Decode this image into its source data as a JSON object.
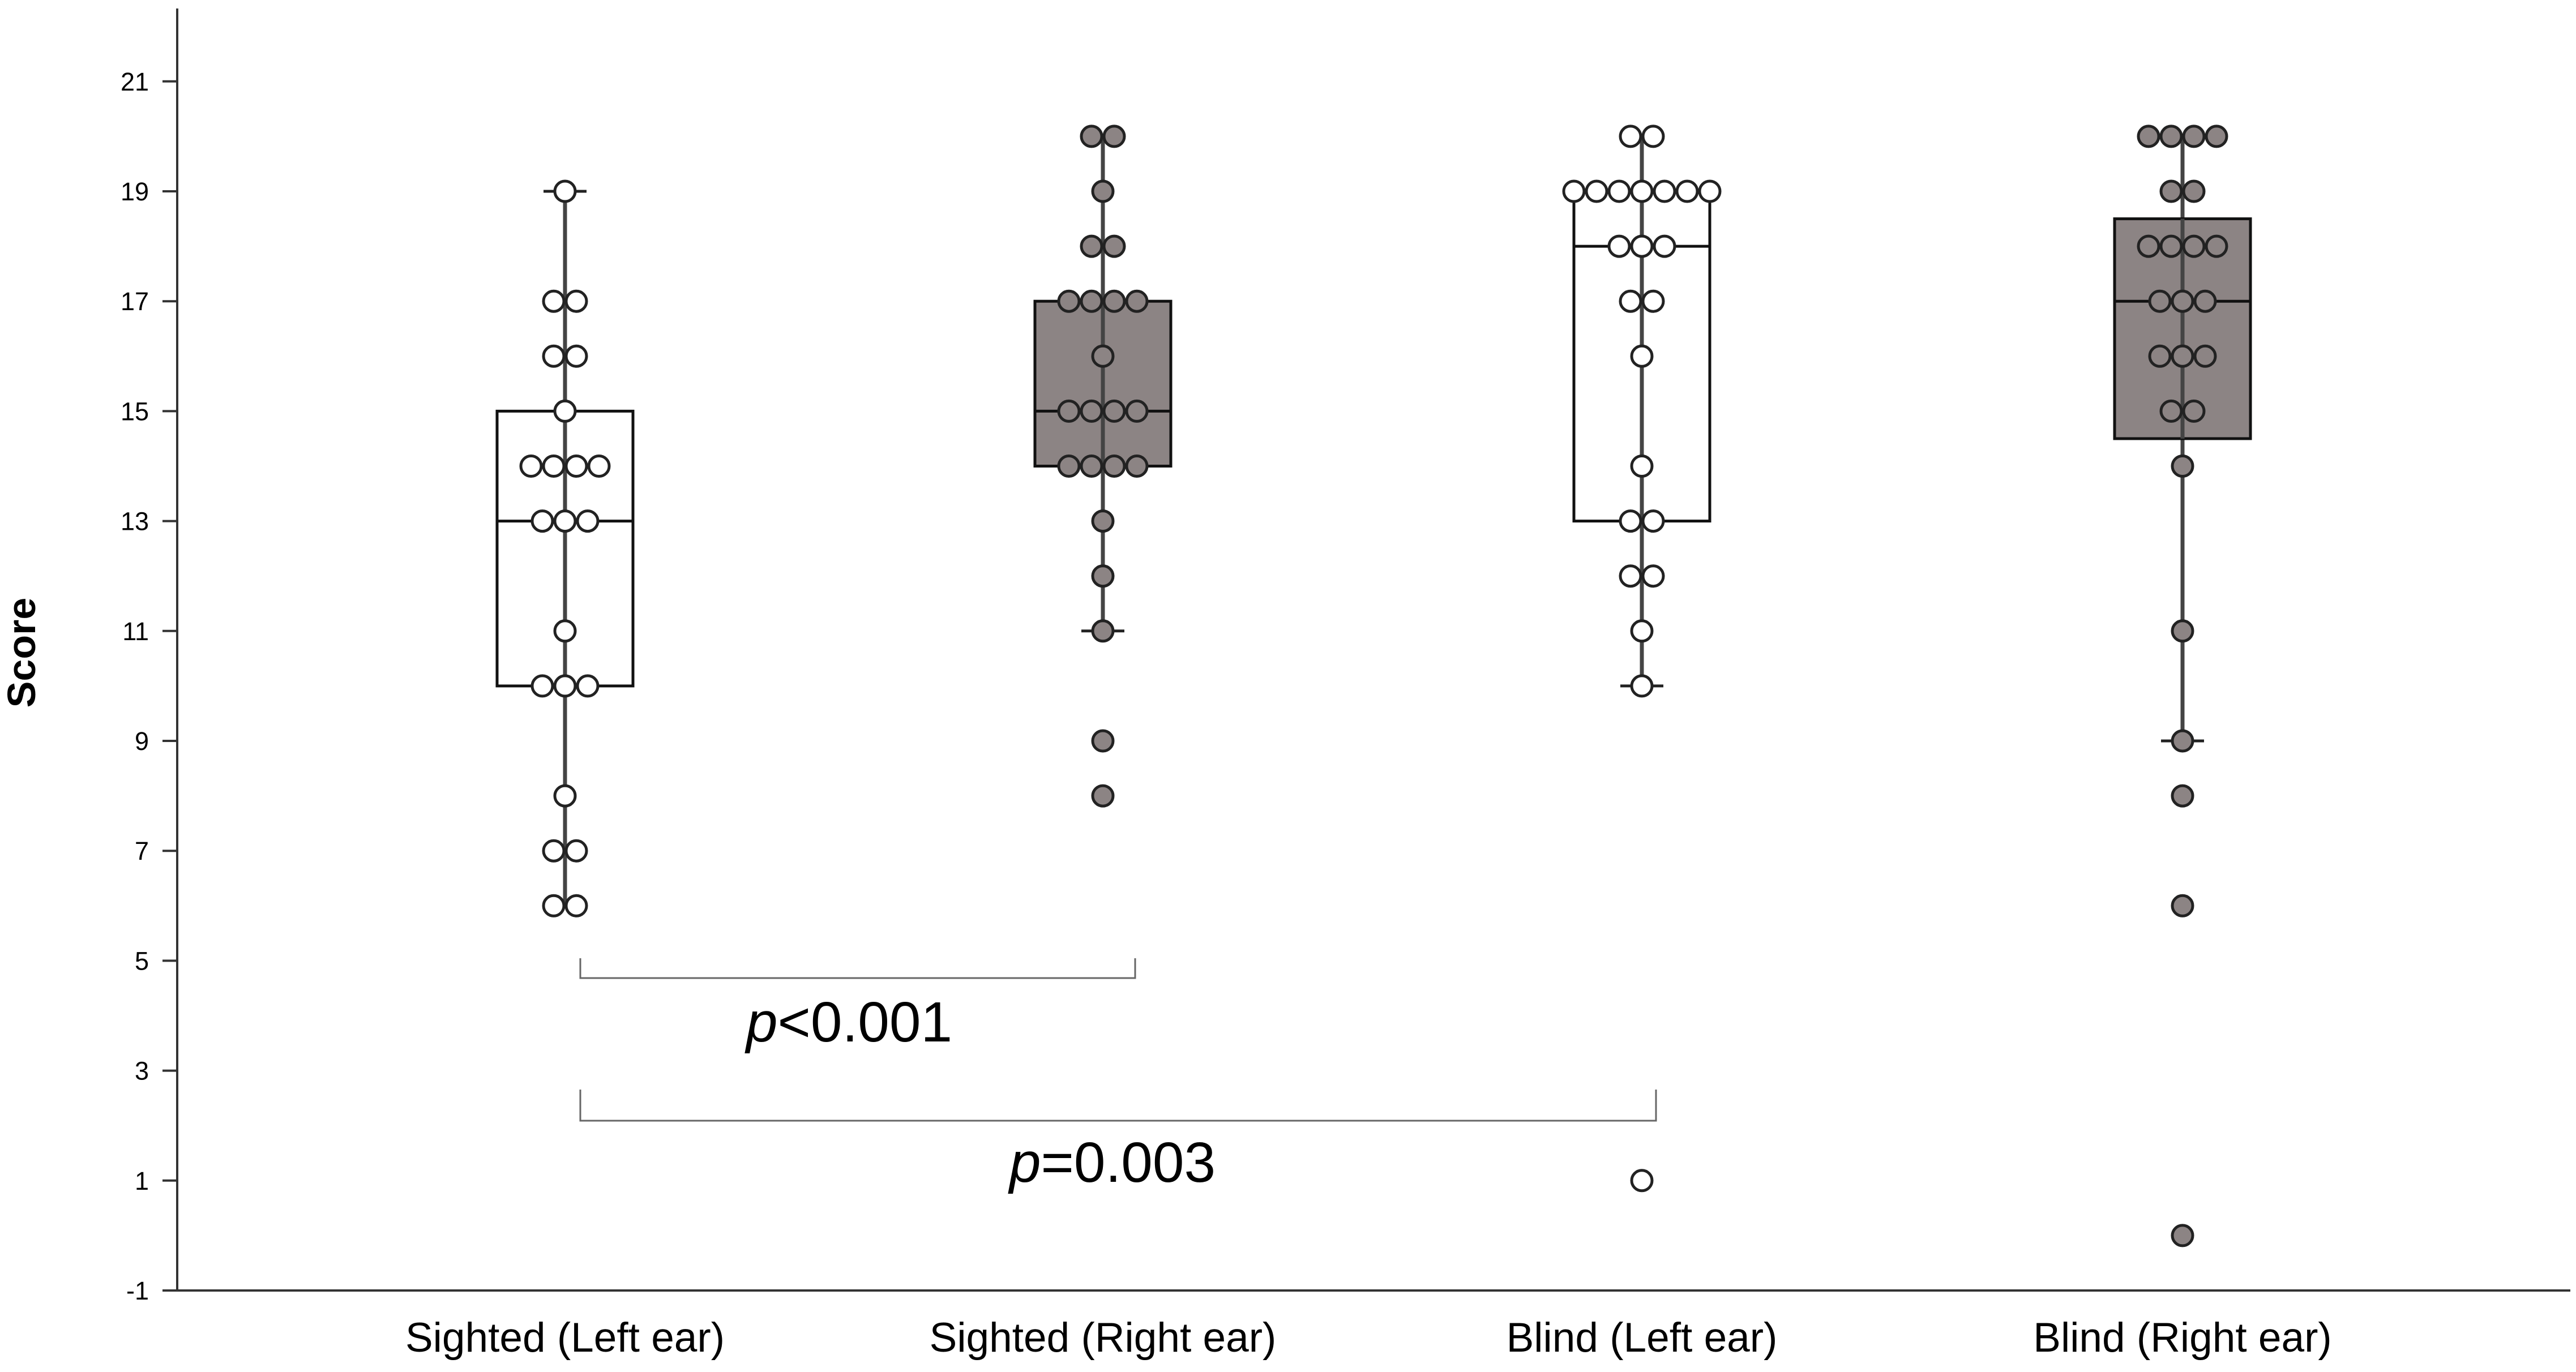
{
  "chart_data": {
    "type": "box",
    "ylabel": "Score",
    "xlabel": "",
    "ylim": [
      -1,
      22
    ],
    "yticks": [
      -1,
      1,
      3,
      5,
      7,
      9,
      11,
      13,
      15,
      17,
      19,
      21
    ],
    "grid": false,
    "categories": [
      "Sighted (Left ear)",
      "Sighted (Right ear)",
      "Blind (Left ear)",
      "Blind (Right ear)"
    ],
    "groups": [
      {
        "category": "Sighted (Left ear)",
        "fill": "#ffffff",
        "box": {
          "whisker_low": 6,
          "q1": 10,
          "median": 13,
          "q3": 15,
          "whisker_high": 19
        },
        "points": [
          {
            "value": 19,
            "count": 1
          },
          {
            "value": 17,
            "count": 2
          },
          {
            "value": 16,
            "count": 2
          },
          {
            "value": 15,
            "count": 1
          },
          {
            "value": 14,
            "count": 4
          },
          {
            "value": 13,
            "count": 3
          },
          {
            "value": 11,
            "count": 1
          },
          {
            "value": 10,
            "count": 3
          },
          {
            "value": 8,
            "count": 1
          },
          {
            "value": 7,
            "count": 2
          },
          {
            "value": 6,
            "count": 2
          }
        ]
      },
      {
        "category": "Sighted (Right ear)",
        "fill": "#8c8484",
        "box": {
          "whisker_low": 11,
          "q1": 14,
          "median": 15,
          "q3": 17,
          "whisker_high": 20
        },
        "points": [
          {
            "value": 20,
            "count": 2
          },
          {
            "value": 19,
            "count": 1
          },
          {
            "value": 18,
            "count": 2
          },
          {
            "value": 17,
            "count": 4
          },
          {
            "value": 16,
            "count": 1
          },
          {
            "value": 15,
            "count": 4
          },
          {
            "value": 14,
            "count": 4
          },
          {
            "value": 13,
            "count": 1
          },
          {
            "value": 12,
            "count": 1
          },
          {
            "value": 11,
            "count": 1
          },
          {
            "value": 9,
            "count": 1
          },
          {
            "value": 8,
            "count": 1
          }
        ]
      },
      {
        "category": "Blind (Left ear)",
        "fill": "#ffffff",
        "box": {
          "whisker_low": 10,
          "q1": 13,
          "median": 18,
          "q3": 19,
          "whisker_high": 20
        },
        "points": [
          {
            "value": 20,
            "count": 2
          },
          {
            "value": 19,
            "count": 7
          },
          {
            "value": 18,
            "count": 3
          },
          {
            "value": 17,
            "count": 2
          },
          {
            "value": 16,
            "count": 1
          },
          {
            "value": 14,
            "count": 1
          },
          {
            "value": 13,
            "count": 2
          },
          {
            "value": 12,
            "count": 2
          },
          {
            "value": 11,
            "count": 1
          },
          {
            "value": 10,
            "count": 1
          },
          {
            "value": 1,
            "count": 1
          }
        ]
      },
      {
        "category": "Blind (Right ear)",
        "fill": "#8c8484",
        "box": {
          "whisker_low": 9,
          "q1": 14.5,
          "median": 17,
          "q3": 18.5,
          "whisker_high": 20
        },
        "points": [
          {
            "value": 20,
            "count": 4
          },
          {
            "value": 19,
            "count": 2
          },
          {
            "value": 18,
            "count": 4
          },
          {
            "value": 17,
            "count": 3
          },
          {
            "value": 16,
            "count": 3
          },
          {
            "value": 15,
            "count": 2
          },
          {
            "value": 14,
            "count": 1
          },
          {
            "value": 11,
            "count": 1
          },
          {
            "value": 9,
            "count": 1
          },
          {
            "value": 8,
            "count": 1
          },
          {
            "value": 6,
            "count": 1
          },
          {
            "value": 0,
            "count": 1
          }
        ]
      }
    ],
    "annotations": [
      {
        "from": "Sighted (Left ear)",
        "to": "Sighted (Right ear)",
        "text_italic": "p",
        "text_rest": "<0.001"
      },
      {
        "from": "Sighted (Left ear)",
        "to": "Blind (Left ear)",
        "text_italic": "p",
        "text_rest": "=0.003"
      }
    ]
  }
}
